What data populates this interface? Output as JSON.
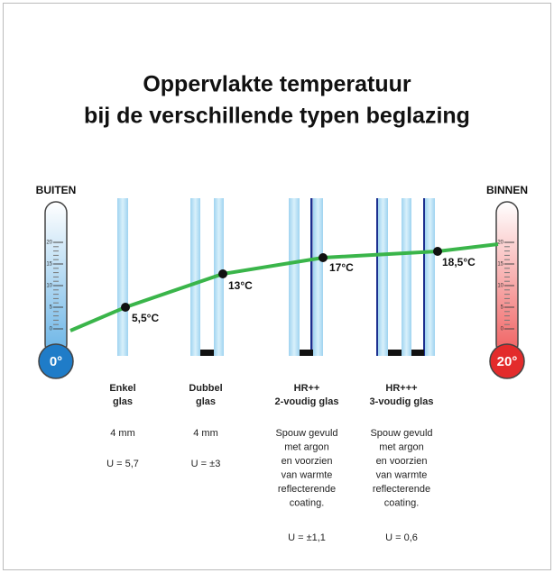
{
  "header": {
    "title": [
      "Oppervlakte temperatuur",
      "bij de verschillende typen beglazing"
    ]
  },
  "thermometers": {
    "outside": {
      "label": "BUITEN",
      "bulb": "0°"
    },
    "inside": {
      "label": "BINNEN",
      "bulb": "20°"
    },
    "scale": [
      "20",
      "15",
      "10",
      "5",
      "0"
    ]
  },
  "temperatures": [
    "5,5°C",
    "13°C",
    "17°C",
    "18,5°C"
  ],
  "columns": [
    {
      "name": [
        "Enkel",
        "glas"
      ],
      "thickness": "4 mm",
      "description": [],
      "u_value": "U = 5,7"
    },
    {
      "name": [
        "Dubbel",
        "glas"
      ],
      "thickness": "4 mm",
      "description": [],
      "u_value": "U = ±3"
    },
    {
      "name": [
        "HR++",
        "2-voudig glas"
      ],
      "thickness": null,
      "description": [
        "Spouw gevuld",
        "met argon",
        "en voorzien",
        "van warmte",
        "reflecterende",
        "coating."
      ],
      "u_value": "U = ±1,1"
    },
    {
      "name": [
        "HR+++",
        "3-voudig glas"
      ],
      "thickness": null,
      "description": [
        "Spouw gevuld",
        "met argon",
        "en voorzien",
        "van warmte",
        "reflecterende",
        "coating."
      ],
      "u_value": "U = 0,6"
    }
  ]
}
